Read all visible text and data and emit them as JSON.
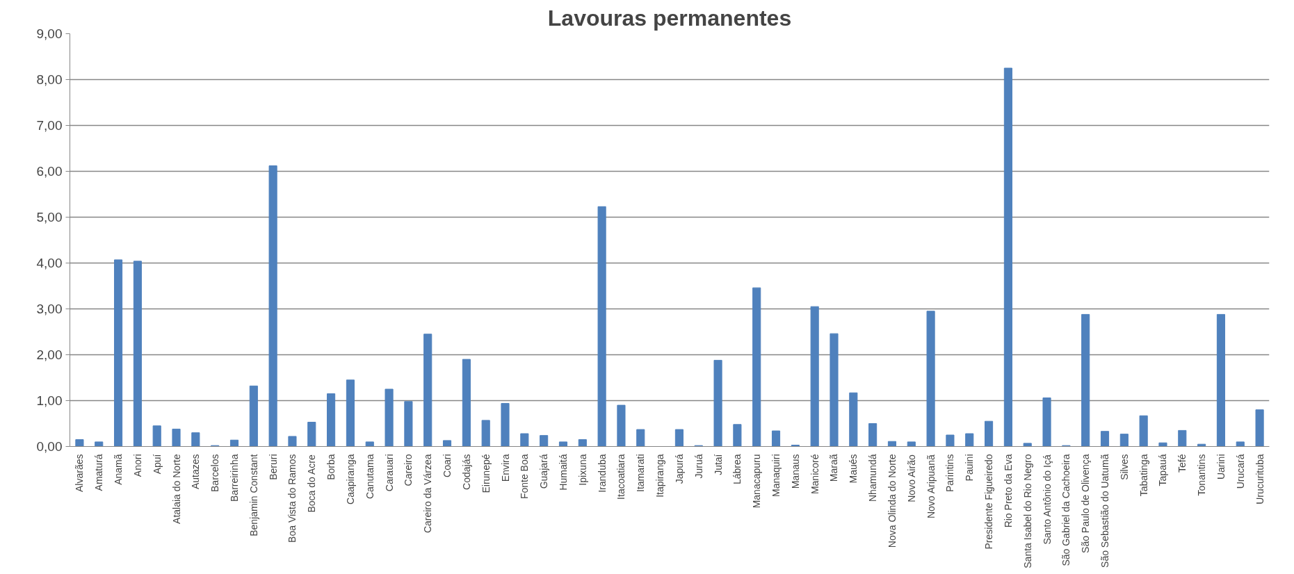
{
  "chart_data": {
    "type": "bar",
    "title": "Lavouras permanentes",
    "categories": [
      "Alvarães",
      "Amaturá",
      "Anamã",
      "Anori",
      "Apuí",
      "Atalaia do Norte",
      "Autazes",
      "Barcelos",
      "Barreirinha",
      "Benjamin Constant",
      "Beruri",
      "Boa Vista do Ramos",
      "Boca do Acre",
      "Borba",
      "Caapiranga",
      "Canutama",
      "Carauari",
      "Careiro",
      "Careiro da Várzea",
      "Coari",
      "Codajás",
      "Eirunepé",
      "Envira",
      "Fonte Boa",
      "Guajará",
      "Humaitá",
      "Ipixuna",
      "Iranduba",
      "Itacoatiara",
      "Itamarati",
      "Itapiranga",
      "Japurá",
      "Juruá",
      "Jutaí",
      "Lábrea",
      "Manacapuru",
      "Manaquiri",
      "Manaus",
      "Manicoré",
      "Maraã",
      "Maués",
      "Nhamundá",
      "Nova Olinda do Norte",
      "Novo Airão",
      "Novo Aripuanã",
      "Parintins",
      "Pauini",
      "Presidente Figueiredo",
      "Rio Preto da Eva",
      "Santa Isabel do Rio Negro",
      "Santo Antônio do Içá",
      "São Gabriel da Cachoeira",
      "São Paulo de Olivença",
      "São Sebastião do Uatumã",
      "Silves",
      "Tabatinga",
      "Tapauá",
      "Tefé",
      "Tonantins",
      "Uarini",
      "Urucará",
      "Urucurituba"
    ],
    "values": [
      0.15,
      0.1,
      4.07,
      4.04,
      0.45,
      0.38,
      0.3,
      0.02,
      0.14,
      1.32,
      6.12,
      0.22,
      0.53,
      1.15,
      1.45,
      0.1,
      1.25,
      0.98,
      2.45,
      0.13,
      1.9,
      0.57,
      0.94,
      0.28,
      0.24,
      0.1,
      0.15,
      5.23,
      0.9,
      0.37,
      0.0,
      0.37,
      0.02,
      1.88,
      0.48,
      3.46,
      0.34,
      0.03,
      3.05,
      2.46,
      1.17,
      0.5,
      0.11,
      0.1,
      2.95,
      0.25,
      0.28,
      0.55,
      8.25,
      0.07,
      1.06,
      0.02,
      2.88,
      0.33,
      0.27,
      0.67,
      0.08,
      0.35,
      0.05,
      2.88,
      0.1,
      0.8
    ],
    "color": "#4f81bd",
    "ylim": [
      0,
      9
    ],
    "yticks": [
      {
        "value": 0,
        "label": "0,00"
      },
      {
        "value": 1,
        "label": "1,00"
      },
      {
        "value": 2,
        "label": "2,00"
      },
      {
        "value": 3,
        "label": "3,00"
      },
      {
        "value": 4,
        "label": "4,00"
      },
      {
        "value": 5,
        "label": "5,00"
      },
      {
        "value": 6,
        "label": "6,00"
      },
      {
        "value": 7,
        "label": "7,00"
      },
      {
        "value": 8,
        "label": "8,00"
      },
      {
        "value": 9,
        "label": "9,00"
      }
    ],
    "grid": "y"
  }
}
